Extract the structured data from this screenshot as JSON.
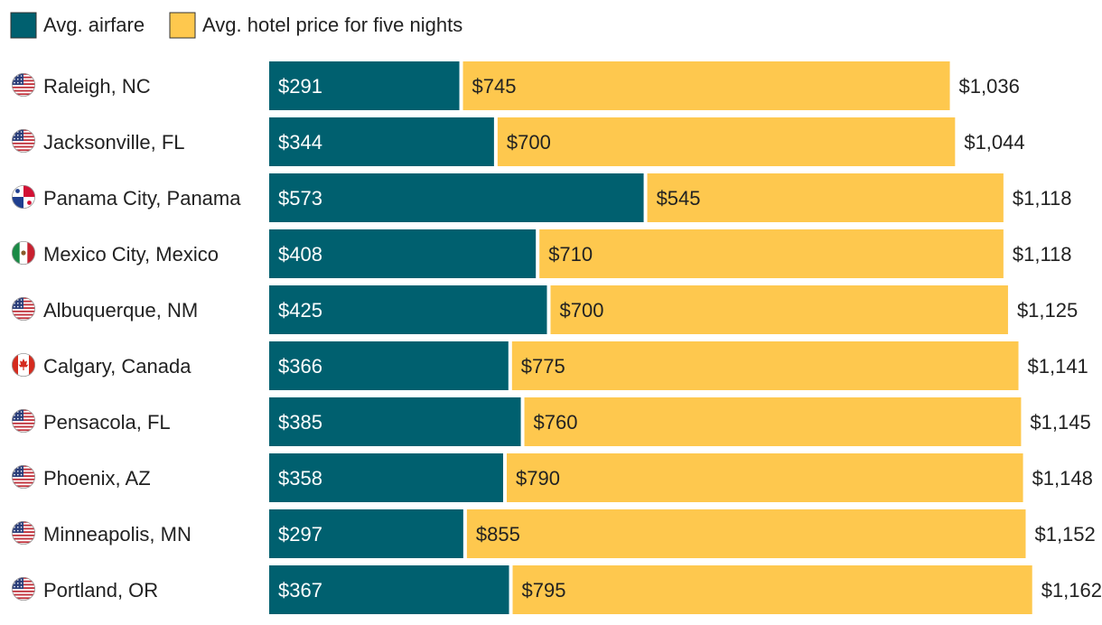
{
  "colors": {
    "airfare": "#00606f",
    "hotel": "#fec84e",
    "label_on_airfare": "#ffffff",
    "label_on_hotel": "#222222",
    "text": "#222222"
  },
  "chart_data": {
    "type": "bar",
    "stacked": true,
    "orientation": "horizontal",
    "legend_position": "top-left",
    "grid": false,
    "series": [
      {
        "name": "Avg. airfare",
        "values": [
          291,
          344,
          573,
          408,
          425,
          366,
          385,
          358,
          297,
          367
        ]
      },
      {
        "name": "Avg. hotel price for five nights",
        "values": [
          745,
          700,
          545,
          710,
          700,
          775,
          760,
          790,
          855,
          795
        ]
      }
    ],
    "categories": [
      "Raleigh, NC",
      "Jacksonville, FL",
      "Panama City, Panama",
      "Mexico City, Mexico",
      "Albuquerque, NM",
      "Calgary, Canada",
      "Pensacola, FL",
      "Phoenix, AZ",
      "Minneapolis, MN",
      "Portland, OR"
    ],
    "country_flags": [
      "us-flag-icon",
      "us-flag-icon",
      "panama-flag-icon",
      "mexico-flag-icon",
      "us-flag-icon",
      "canada-flag-icon",
      "us-flag-icon",
      "us-flag-icon",
      "us-flag-icon",
      "us-flag-icon"
    ],
    "airfare_labels": [
      "$291",
      "$344",
      "$573",
      "$408",
      "$425",
      "$366",
      "$385",
      "$358",
      "$297",
      "$367"
    ],
    "hotel_labels": [
      "$745",
      "$700",
      "$545",
      "$710",
      "$700",
      "$775",
      "$760",
      "$790",
      "$855",
      "$795"
    ],
    "total_labels": [
      "$1,036",
      "$1,044",
      "$1,118",
      "$1,118",
      "$1,125",
      "$1,141",
      "$1,145",
      "$1,148",
      "$1,152",
      "$1,162"
    ]
  }
}
